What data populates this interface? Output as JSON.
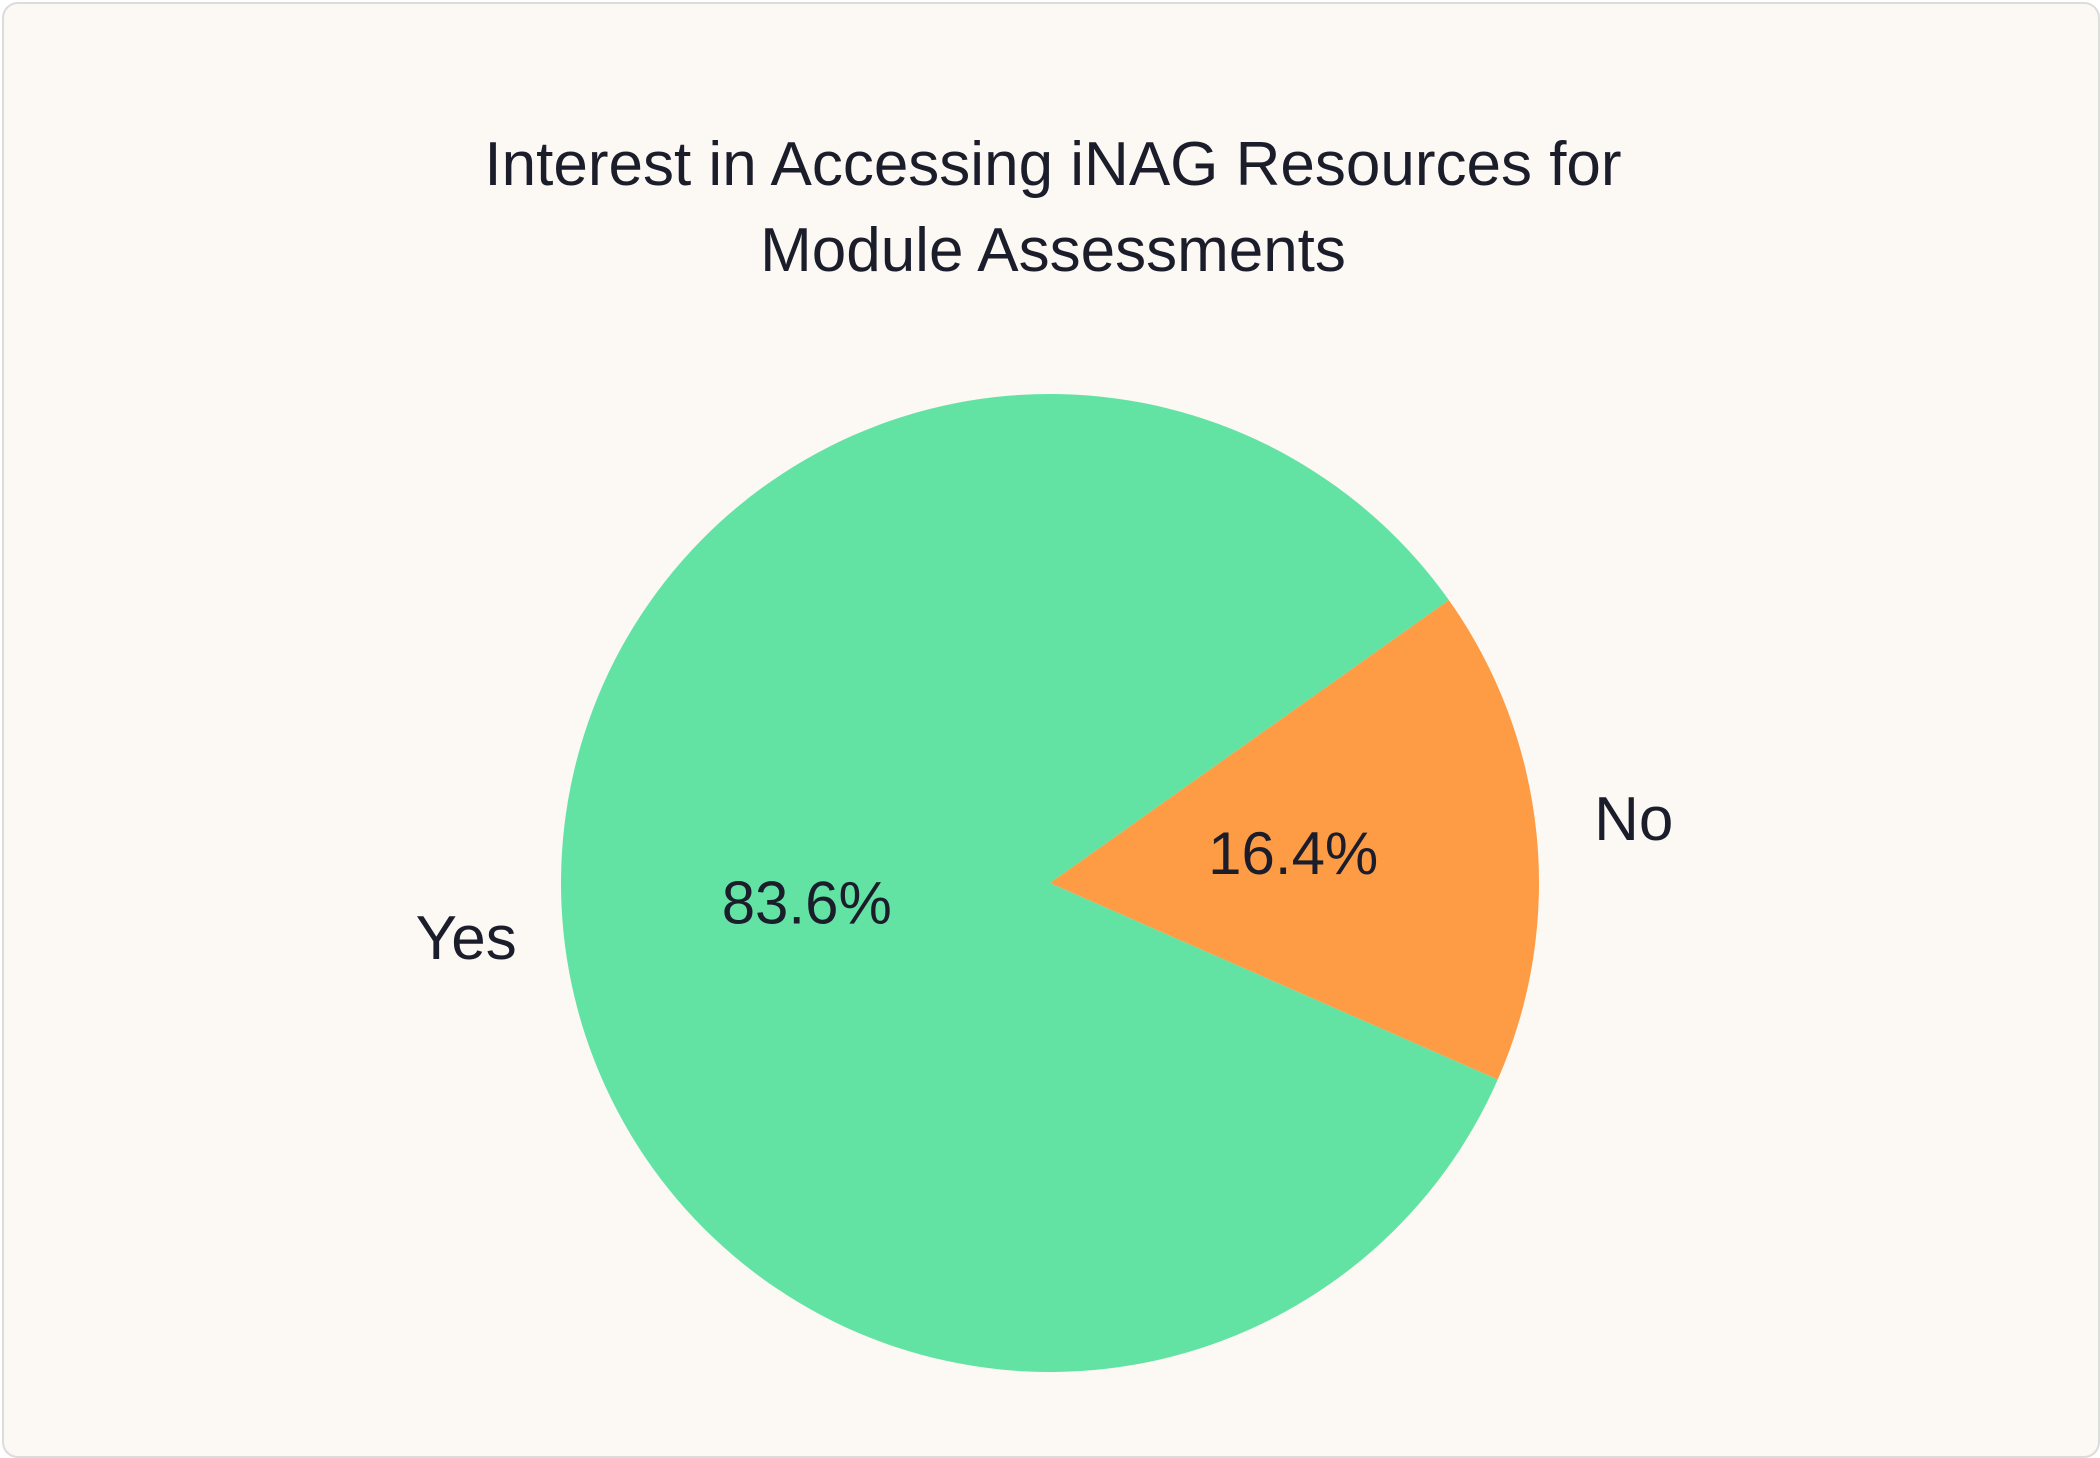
{
  "chart_data": {
    "type": "pie",
    "title_lines": [
      "Interest in Accessing iNAG Resources for",
      "Module Assessments"
    ],
    "slices": [
      {
        "label": "Yes",
        "value": 83.6,
        "value_label": "83.6%",
        "color": "#62e3a3"
      },
      {
        "label": "No",
        "value": 16.4,
        "value_label": "16.4%",
        "color": "#fe9c45"
      }
    ]
  }
}
